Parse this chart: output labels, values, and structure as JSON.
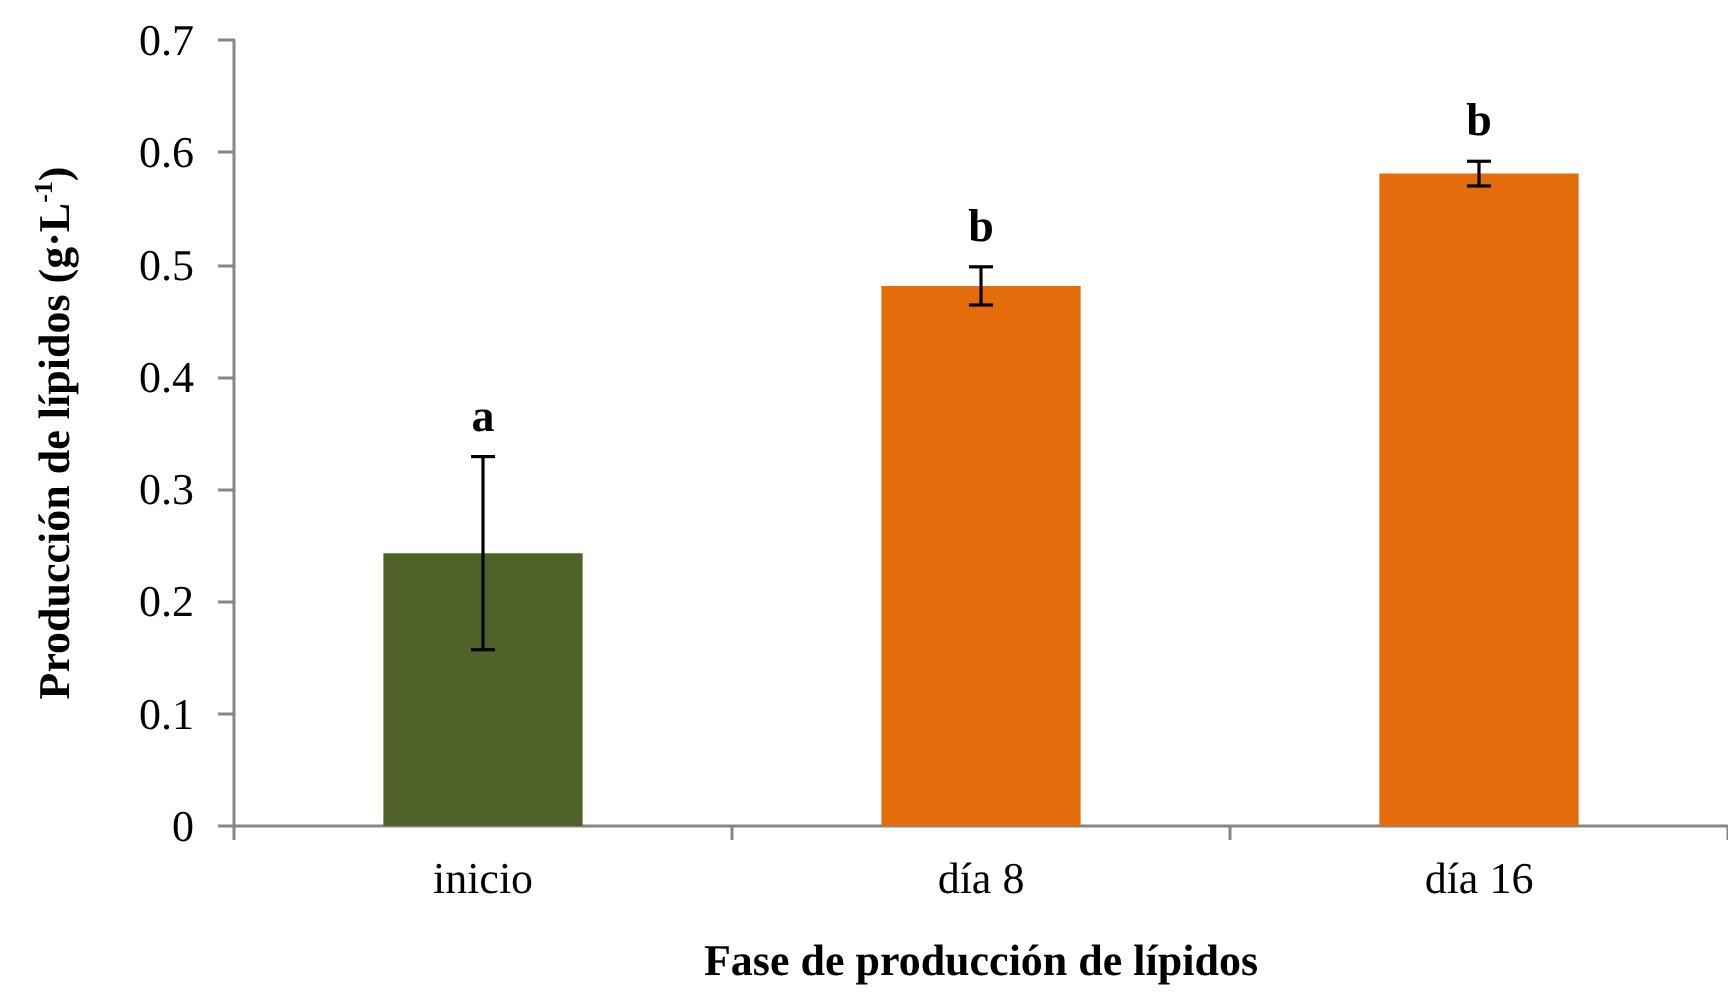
{
  "chart_data": {
    "type": "bar",
    "xlabel": "Fase de producción de lípidos",
    "ylabel": "Producción de lípidos (g·L$^{-1}$)",
    "categories": [
      "inicio",
      "día 8",
      "día 16"
    ],
    "values": [
      0.243,
      0.481,
      0.581
    ],
    "colors": [
      "#4f6228",
      "#e46c0a",
      "#e46c0a"
    ],
    "errors": [
      0.086,
      0.017,
      0.011
    ],
    "ylim": [
      0,
      0.7
    ],
    "yticks": [
      0,
      0.1,
      0.2,
      0.3,
      0.4,
      0.5,
      0.6,
      0.7
    ],
    "annotations": [
      {
        "text": "a",
        "x": "inicio",
        "y": 0.329
      },
      {
        "text": "b",
        "x": "día 8",
        "y": 0.498
      },
      {
        "text": "b",
        "x": "día 16",
        "y": 0.592
      }
    ]
  }
}
